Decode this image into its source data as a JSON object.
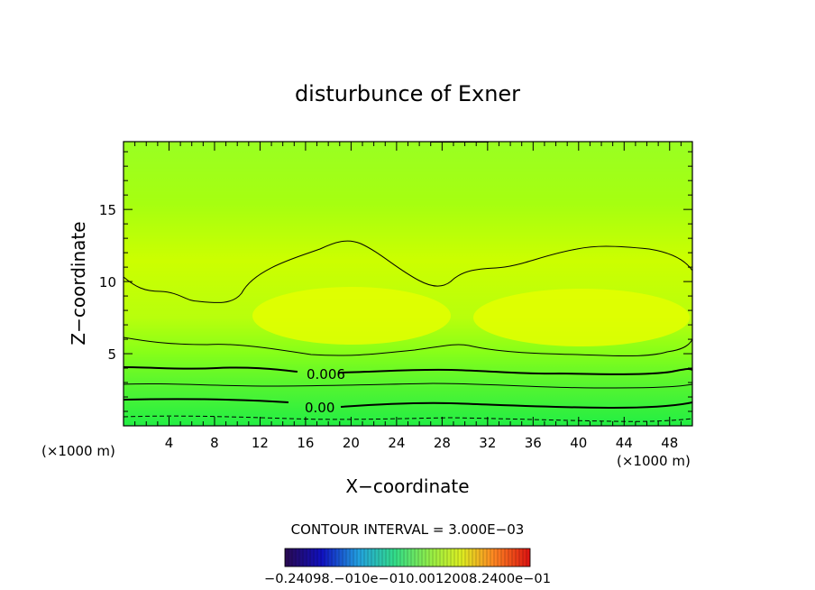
{
  "chart_data": {
    "type": "contour",
    "title": "disturbunce of Exner",
    "xlabel": "X−coordinate",
    "ylabel": "Z−coordinate",
    "x_unit": "(×1000 m)",
    "x_unit_right": "(×1000 m)",
    "xlim": [
      0,
      50
    ],
    "ylim": [
      0,
      19.7
    ],
    "xticks": [
      4,
      8,
      12,
      16,
      20,
      24,
      28,
      32,
      36,
      40,
      44,
      48
    ],
    "yticks": [
      5,
      10,
      15
    ],
    "contour_interval_text": "CONTOUR INTERVAL = 3.000E−03",
    "contour_labels": [
      {
        "text": "0.006",
        "x": 17.5,
        "y": 3.7
      },
      {
        "text": "0.00",
        "x": 17.2,
        "y": 1.3
      }
    ],
    "colorbar_labels_text": "−0.24098.−010e−010.0012008.2400e−01",
    "colors": {
      "field_low": "#22ee44",
      "field_mid": "#99ff00",
      "field_high": "#e8ff00",
      "contour_line": "#000000"
    }
  }
}
